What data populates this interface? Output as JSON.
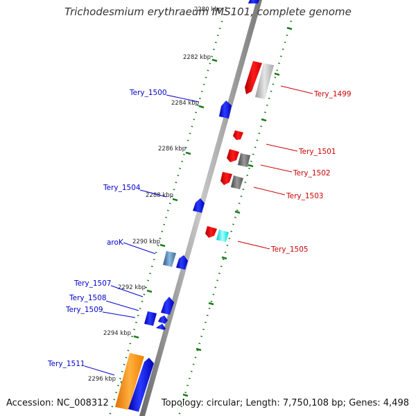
{
  "title": "Trichodesmium erythraeum IMS101, complete genome",
  "accession_label": "Accession: NC_008312",
  "topology_label": "Topology: circular",
  "length_label": "Length: 7,750,108 bp",
  "genes_label": "Genes: 4,498",
  "colors": {
    "forward_label": "#0000cc",
    "reverse_label": "#cc0000",
    "tick": "#1a7a1a",
    "backbone": "#888888"
  },
  "kbp_markers": [
    {
      "label": "2280 kbp",
      "faded": true
    },
    {
      "label": "2282 kbp"
    },
    {
      "label": "2284 kbp"
    },
    {
      "label": "2286 kbp"
    },
    {
      "label": "2288 kbp"
    },
    {
      "label": "2290 kbp"
    },
    {
      "label": "2292 kbp"
    },
    {
      "label": "2294 kbp"
    },
    {
      "label": "2296 kbp"
    }
  ],
  "forward_labels": [
    {
      "name": "Tery_1500"
    },
    {
      "name": "Tery_1504"
    },
    {
      "name": "aroK"
    },
    {
      "name": "Tery_1507"
    },
    {
      "name": "Tery_1508"
    },
    {
      "name": "Tery_1509"
    },
    {
      "name": "Tery_1511"
    }
  ],
  "reverse_labels": [
    {
      "name": "Tery_1499"
    },
    {
      "name": "Tery_1501"
    },
    {
      "name": "Tery_1502"
    },
    {
      "name": "Tery_1503"
    },
    {
      "name": "Tery_1505"
    }
  ]
}
